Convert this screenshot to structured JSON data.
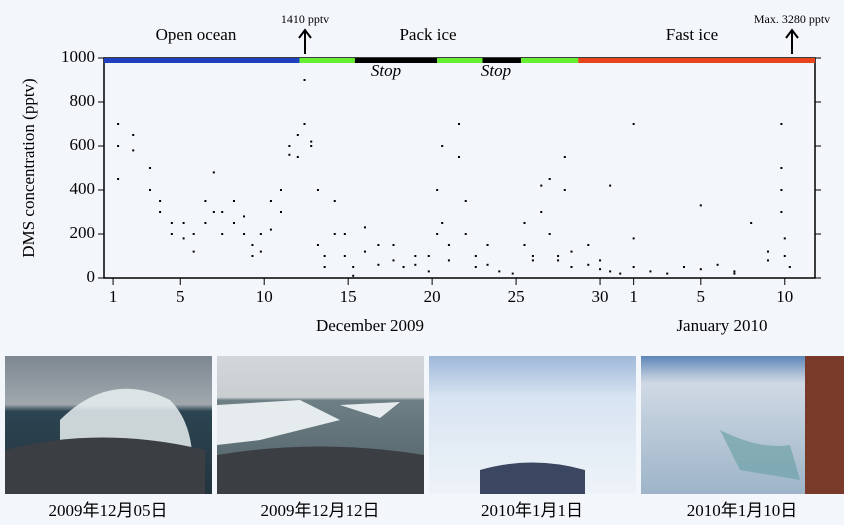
{
  "chart_data": {
    "type": "scatter",
    "ylabel": "DMS concentration (pptv)",
    "xlabels": [
      "December 2009",
      "January 2010"
    ],
    "regions": [
      "Open ocean",
      "Pack ice",
      "Fast ice"
    ],
    "stops": [
      "Stop",
      "Stop"
    ],
    "annotations": [
      "1410 pptv",
      "Max. 3280 pptv"
    ],
    "xlim": [
      0.46,
      42.8
    ],
    "ylim": [
      0,
      1000
    ],
    "yticks": [
      0,
      200,
      400,
      600,
      800,
      1000
    ],
    "xticks": [
      1,
      5,
      10,
      15,
      20,
      25,
      30,
      {
        "value": 32,
        "label": "1"
      },
      {
        "value": 36,
        "label": "5"
      },
      {
        "value": 41,
        "label": "10"
      }
    ],
    "color": "#000000",
    "segments": [
      {
        "start": 0.46,
        "end": 12.1,
        "color": "#1f3fbf"
      },
      {
        "start": 12.1,
        "end": 15.4,
        "color": "#66ee33"
      },
      {
        "start": 15.4,
        "end": 20.3,
        "color": "#000000"
      },
      {
        "start": 20.3,
        "end": 23.0,
        "color": "#66ee33"
      },
      {
        "start": 23.0,
        "end": 25.3,
        "color": "#000000"
      },
      {
        "start": 25.3,
        "end": 28.7,
        "color": "#66ee33"
      },
      {
        "start": 28.7,
        "end": 42.8,
        "color": "#e8451c"
      }
    ],
    "x": [
      1.3,
      1.3,
      1.3,
      2.2,
      2.2,
      3.2,
      3.2,
      3.8,
      3.8,
      4.5,
      4.5,
      5.2,
      5.2,
      5.8,
      5.8,
      6.5,
      6.5,
      7,
      7,
      7.5,
      7.5,
      8.2,
      8.2,
      8.8,
      8.8,
      9.3,
      9.3,
      9.8,
      9.8,
      10.4,
      10.4,
      11,
      11,
      11.5,
      11.5,
      12,
      12,
      12.4,
      12.4,
      12.8,
      12.8,
      13.2,
      13.2,
      13.6,
      13.6,
      14.2,
      14.2,
      14.8,
      14.8,
      15.3,
      15.3,
      16,
      16,
      16.8,
      16.8,
      17.7,
      17.7,
      18.3,
      19,
      19,
      19.8,
      19.8,
      20.3,
      20.3,
      20.6,
      20.6,
      21,
      21,
      21.6,
      21.6,
      22,
      22,
      22.6,
      22.6,
      23.3,
      23.3,
      24,
      24.8,
      25.5,
      25.5,
      26,
      26,
      26.5,
      26.5,
      27,
      27,
      27.5,
      27.5,
      27.9,
      27.9,
      28.3,
      28.3,
      29.3,
      29.3,
      30,
      30,
      30.6,
      30.6,
      31.2,
      32,
      32,
      32,
      33,
      34,
      35,
      36,
      36,
      37,
      38,
      38,
      39,
      40,
      40,
      40.8,
      40.8,
      40.8,
      40.8,
      41,
      41,
      41.3
    ],
    "values": [
      600,
      700,
      450,
      650,
      580,
      500,
      400,
      350,
      300,
      250,
      200,
      180,
      250,
      200,
      120,
      250,
      350,
      480,
      300,
      300,
      200,
      250,
      350,
      200,
      280,
      150,
      100,
      200,
      120,
      350,
      220,
      400,
      300,
      600,
      560,
      650,
      550,
      900,
      700,
      600,
      620,
      400,
      150,
      100,
      50,
      350,
      200,
      200,
      100,
      50,
      10,
      230,
      120,
      60,
      150,
      150,
      80,
      50,
      100,
      60,
      30,
      100,
      400,
      200,
      600,
      250,
      150,
      80,
      700,
      550,
      350,
      200,
      100,
      50,
      150,
      60,
      30,
      20,
      250,
      150,
      100,
      80,
      420,
      300,
      450,
      200,
      100,
      80,
      550,
      400,
      120,
      50,
      150,
      60,
      80,
      40,
      420,
      30,
      20,
      700,
      180,
      50,
      30,
      20,
      50,
      330,
      40,
      60,
      20,
      30,
      250,
      80,
      120,
      700,
      400,
      500,
      300,
      180,
      100,
      50
    ]
  },
  "photos": [
    {
      "caption": "2009年12月05日"
    },
    {
      "caption": "2009年12月12日"
    },
    {
      "caption": "2010年1月1日"
    },
    {
      "caption": "2010年1月10日"
    }
  ]
}
